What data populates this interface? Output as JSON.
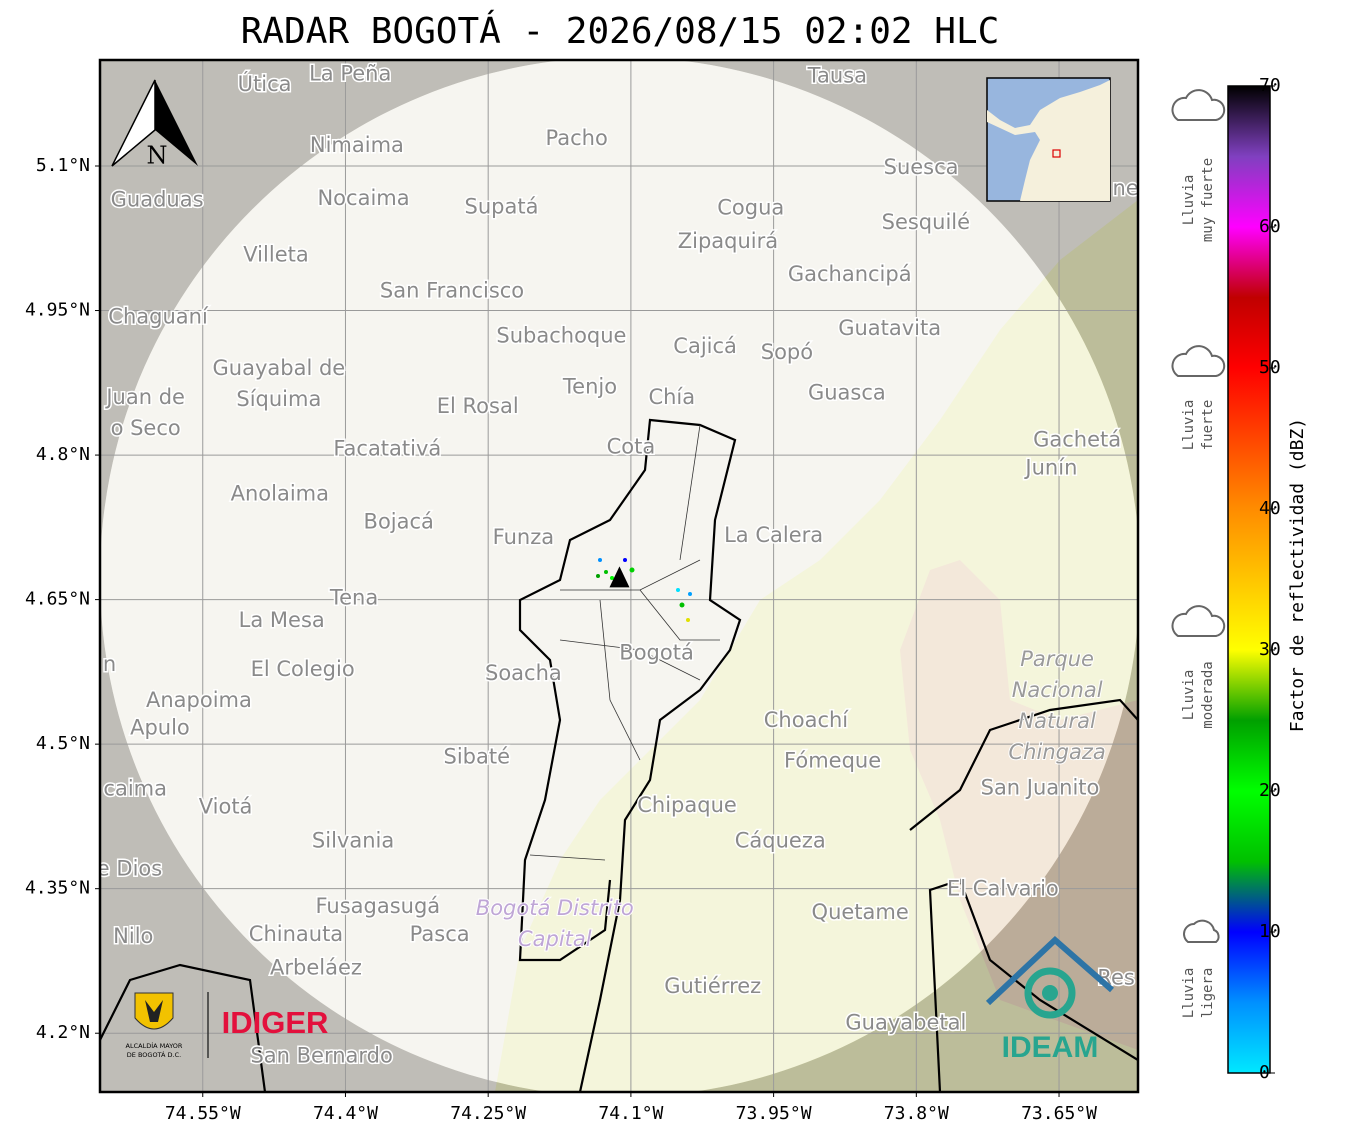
{
  "title": "RADAR BOGOTÁ - 2026/08/15 02:02 HLC",
  "north": "N",
  "map": {
    "lonlim": [
      -74.658,
      -73.567
    ],
    "latlim": [
      4.139,
      5.21
    ],
    "lonticks": [
      {
        "value": -74.55,
        "label": "74.55°W"
      },
      {
        "value": -74.4,
        "label": "74.4°W"
      },
      {
        "value": -74.25,
        "label": "74.25°W"
      },
      {
        "value": -74.1,
        "label": "74.1°W"
      },
      {
        "value": -73.95,
        "label": "73.95°W"
      },
      {
        "value": -73.8,
        "label": "73.8°W"
      },
      {
        "value": -73.65,
        "label": "73.65°W"
      }
    ],
    "latticks": [
      {
        "value": 5.1,
        "label": "5.1°N"
      },
      {
        "value": 4.95,
        "label": "4.95°N"
      },
      {
        "value": 4.8,
        "label": "4.8°N"
      },
      {
        "value": 4.65,
        "label": "4.65°N"
      },
      {
        "value": 4.5,
        "label": "4.5°N"
      },
      {
        "value": 4.35,
        "label": "4.35°N"
      },
      {
        "value": 4.2,
        "label": "4.2°N"
      }
    ],
    "grid": true,
    "radar": {
      "lon": -74.112,
      "lat": 4.672
    },
    "places": [
      {
        "lines": [
          "La Peña"
        ],
        "lon": -74.395,
        "lat": 5.195
      },
      {
        "lines": [
          "Útica"
        ],
        "lon": -74.485,
        "lat": 5.184
      },
      {
        "lines": [
          "Tausa"
        ],
        "lon": -73.883,
        "lat": 5.193
      },
      {
        "lines": [
          "Pacho"
        ],
        "lon": -74.157,
        "lat": 5.128
      },
      {
        "lines": [
          "Nimaima"
        ],
        "lon": -74.388,
        "lat": 5.121
      },
      {
        "lines": [
          "Guaduas"
        ],
        "lon": -74.598,
        "lat": 5.064
      },
      {
        "lines": [
          "Nocaima"
        ],
        "lon": -74.381,
        "lat": 5.066
      },
      {
        "lines": [
          "Supatá"
        ],
        "lon": -74.236,
        "lat": 5.057
      },
      {
        "lines": [
          "Cogua"
        ],
        "lon": -73.974,
        "lat": 5.056
      },
      {
        "lines": [
          "Suesca"
        ],
        "lon": -73.795,
        "lat": 5.098
      },
      {
        "lines": [
          "Sesquilé"
        ],
        "lon": -73.79,
        "lat": 5.041
      },
      {
        "lines": [
          "Zipaquirá"
        ],
        "lon": -73.998,
        "lat": 5.021
      },
      {
        "lines": [
          "Villeta"
        ],
        "lon": -74.473,
        "lat": 5.007
      },
      {
        "lines": [
          "Gachancipá"
        ],
        "lon": -73.87,
        "lat": 4.987
      },
      {
        "lines": [
          "San Francisco"
        ],
        "lon": -74.288,
        "lat": 4.97
      },
      {
        "lines": [
          "Chaguaní"
        ],
        "lon": -74.597,
        "lat": 4.943
      },
      {
        "lines": [
          "Guatavita"
        ],
        "lon": -73.828,
        "lat": 4.931
      },
      {
        "lines": [
          "Subachoque"
        ],
        "lon": -74.173,
        "lat": 4.923
      },
      {
        "lines": [
          "Cajicá"
        ],
        "lon": -74.022,
        "lat": 4.912
      },
      {
        "lines": [
          "Sopó"
        ],
        "lon": -73.936,
        "lat": 4.906
      },
      {
        "lines": [
          "Guayabal de",
          "Síquima"
        ],
        "lon": -74.47,
        "lat": 4.873
      },
      {
        "lines": [
          "Tenjo"
        ],
        "lon": -74.143,
        "lat": 4.87
      },
      {
        "lines": [
          "Chía"
        ],
        "lon": -74.057,
        "lat": 4.859
      },
      {
        "lines": [
          "Guasca"
        ],
        "lon": -73.873,
        "lat": 4.864
      },
      {
        "lines": [
          "Juan de",
          "o Seco"
        ],
        "lon": -74.61,
        "lat": 4.843
      },
      {
        "lines": [
          "El Rosal"
        ],
        "lon": -74.261,
        "lat": 4.85
      },
      {
        "lines": [
          "Facatativá"
        ],
        "lon": -74.356,
        "lat": 4.806
      },
      {
        "lines": [
          "Cota"
        ],
        "lon": -74.1,
        "lat": 4.808
      },
      {
        "lines": [
          "Gachetá"
        ],
        "lon": -73.631,
        "lat": 4.815
      },
      {
        "lines": [
          "Junín"
        ],
        "lon": -73.658,
        "lat": 4.786
      },
      {
        "lines": [
          "Anolaima"
        ],
        "lon": -74.469,
        "lat": 4.759
      },
      {
        "lines": [
          "Bojacá"
        ],
        "lon": -74.344,
        "lat": 4.73
      },
      {
        "lines": [
          "Funza"
        ],
        "lon": -74.213,
        "lat": 4.714
      },
      {
        "lines": [
          "La Calera"
        ],
        "lon": -73.95,
        "lat": 4.716
      },
      {
        "lines": [
          "Tena"
        ],
        "lon": -74.391,
        "lat": 4.651
      },
      {
        "lines": [
          "La Mesa"
        ],
        "lon": -74.467,
        "lat": 4.628
      },
      {
        "lines": [
          "Bogotá"
        ],
        "lon": -74.073,
        "lat": 4.594
      },
      {
        "lines": [
          "Soacha"
        ],
        "lon": -74.213,
        "lat": 4.573
      },
      {
        "lines": [
          "El Colegio"
        ],
        "lon": -74.445,
        "lat": 4.577
      },
      {
        "lines": [
          "n"
        ],
        "lon": -74.648,
        "lat": 4.582
      },
      {
        "lines": [
          "Anapoima"
        ],
        "lon": -74.554,
        "lat": 4.545
      },
      {
        "lines": [
          "Apulo"
        ],
        "lon": -74.595,
        "lat": 4.516
      },
      {
        "lines": [
          "Choachí"
        ],
        "lon": -73.916,
        "lat": 4.524
      },
      {
        "lines": [
          "Sibaté"
        ],
        "lon": -74.262,
        "lat": 4.486
      },
      {
        "lines": [
          "Fómeque"
        ],
        "lon": -73.888,
        "lat": 4.482
      },
      {
        "lines": [
          "San Juanito"
        ],
        "lon": -73.67,
        "lat": 4.454
      },
      {
        "lines": [
          "caima"
        ],
        "lon": -74.621,
        "lat": 4.453
      },
      {
        "lines": [
          "Viotá"
        ],
        "lon": -74.526,
        "lat": 4.434
      },
      {
        "lines": [
          "Chipaque"
        ],
        "lon": -74.041,
        "lat": 4.436
      },
      {
        "lines": [
          "Silvania"
        ],
        "lon": -74.392,
        "lat": 4.399
      },
      {
        "lines": [
          "Cáqueza"
        ],
        "lon": -73.943,
        "lat": 4.399
      },
      {
        "lines": [
          "e Dios"
        ],
        "lon": -74.627,
        "lat": 4.37
      },
      {
        "lines": [
          "El Calvario"
        ],
        "lon": -73.709,
        "lat": 4.349
      },
      {
        "lines": [
          "Fusagasugá"
        ],
        "lon": -74.366,
        "lat": 4.331
      },
      {
        "lines": [
          "Quetame"
        ],
        "lon": -73.859,
        "lat": 4.325
      },
      {
        "lines": [
          "Nilo"
        ],
        "lon": -74.623,
        "lat": 4.3
      },
      {
        "lines": [
          "Chinauta"
        ],
        "lon": -74.452,
        "lat": 4.302
      },
      {
        "lines": [
          "Pasca"
        ],
        "lon": -74.301,
        "lat": 4.302
      },
      {
        "lines": [
          "Arbeláez"
        ],
        "lon": -74.431,
        "lat": 4.267
      },
      {
        "lines": [
          "Gutiérrez"
        ],
        "lon": -74.014,
        "lat": 4.248
      },
      {
        "lines": [
          "Guayabetal"
        ],
        "lon": -73.811,
        "lat": 4.21
      },
      {
        "lines": [
          "San Bernardo"
        ],
        "lon": -74.425,
        "lat": 4.176
      },
      {
        "lines": [
          "ne"
        ],
        "lon": -73.58,
        "lat": 5.076
      },
      {
        "lines": [
          "Res"
        ],
        "lon": -73.59,
        "lat": 4.257
      }
    ],
    "areas": [
      {
        "lines": [
          "Parque",
          "Nacional",
          "Natural",
          "Chingaza"
        ],
        "lon": -73.652,
        "lat": 4.539,
        "color": "#9a9a9a"
      },
      {
        "lines": [
          "Bogotá Distrito",
          "Capital"
        ],
        "lon": -74.18,
        "lat": 4.313,
        "color": "#bfa6d6"
      }
    ]
  },
  "colorbar": {
    "label": "Factor de reflectividad (dBZ)",
    "lim": [
      0,
      70
    ],
    "ticks": [
      0,
      10,
      20,
      30,
      40,
      50,
      60,
      70
    ],
    "colormap": [
      {
        "value": 0,
        "color": "#00e8ff"
      },
      {
        "value": 5,
        "color": "#0090ff"
      },
      {
        "value": 10,
        "color": "#0000ff"
      },
      {
        "value": 15,
        "color": "#00c000"
      },
      {
        "value": 20,
        "color": "#00ff00"
      },
      {
        "value": 25,
        "color": "#00a000"
      },
      {
        "value": 30,
        "color": "#ffff00"
      },
      {
        "value": 40,
        "color": "#ff8c00"
      },
      {
        "value": 50,
        "color": "#ff0000"
      },
      {
        "value": 55,
        "color": "#c00000"
      },
      {
        "value": 60,
        "color": "#ff00ff"
      },
      {
        "value": 65,
        "color": "#8040c0"
      },
      {
        "value": 70,
        "color": "#000000"
      }
    ]
  },
  "rain_levels": [
    {
      "lines": [
        "Lluvia",
        "muy fuerte"
      ]
    },
    {
      "lines": [
        "Lluvia",
        "fuerte"
      ]
    },
    {
      "lines": [
        "Lluvia",
        "moderada"
      ]
    },
    {
      "lines": [
        "Lluvia",
        "ligera"
      ]
    }
  ],
  "logos": {
    "alcaldia": [
      "ALCALDÍA MAYOR",
      "DE BOGOTÁ D.C."
    ],
    "idiger": "IDIGER",
    "ideam": "IDEAM"
  }
}
